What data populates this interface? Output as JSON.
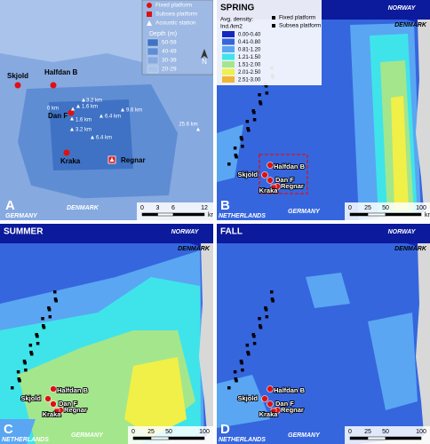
{
  "panel_a": {
    "letter": "A",
    "legend": {
      "items": [
        "Fixed platform",
        "Subsea platform",
        "Acoustic station"
      ],
      "depth_title": "Depth (m)",
      "depth_classes": [
        "50-59",
        "40-49",
        "30-39",
        "20-29"
      ],
      "depth_colors": [
        "#3f72c4",
        "#5f8dd3",
        "#86a9e0",
        "#a9c3ea"
      ]
    },
    "north": "N",
    "platforms": [
      "Skjold",
      "Halfdan B",
      "Dan F",
      "Kraka",
      "Regnar"
    ],
    "distances": [
      "0 km",
      "3.2 km",
      "1.6 km",
      "1.6 km",
      "6.4 km",
      "9.6 km",
      "3.2 km",
      "6.4 km",
      "25.6 km"
    ],
    "countries": [
      "GERMANY",
      "DENMARK"
    ],
    "scale": {
      "ticks": [
        0,
        3,
        6,
        12
      ],
      "unit": "km"
    }
  },
  "density_legend": {
    "title": "Avg. density:",
    "unit": "Ind./km2",
    "classes": [
      "0.00-0.40",
      "0.41-0.80",
      "0.81-1.20",
      "1.21-1.50",
      "1.51-2.00",
      "2.01-2.50",
      "2.51-3.00"
    ],
    "colors": [
      "#1428c0",
      "#3566de",
      "#5aa6f2",
      "#3fe4ea",
      "#a4e68c",
      "#f0f048",
      "#f2b432"
    ],
    "items": [
      "Fixed platform",
      "Subsea platform"
    ]
  },
  "panels": [
    {
      "season": "SPRING",
      "letter": "B",
      "countries": [
        "NORWAY",
        "DENMARK",
        "NETHERLANDS",
        "GERMANY"
      ],
      "platforms": [
        "Halfdan B",
        "Skjold",
        "Dan F",
        "Kraka",
        "Regnar"
      ],
      "scale": {
        "ticks": [
          0,
          25,
          50,
          100
        ],
        "unit": "km"
      }
    },
    {
      "season": "SUMMER",
      "letter": "C",
      "countries": [
        "NORWAY",
        "DENMARK",
        "NETHERLANDS",
        "GERMANY"
      ],
      "platforms": [
        "Halfdan B",
        "Skjold",
        "Dan F",
        "Kraka",
        "Regnar"
      ],
      "scale": {
        "ticks": [
          0,
          25,
          50,
          100
        ]
      }
    },
    {
      "season": "FALL",
      "letter": "D",
      "countries": [
        "NORWAY",
        "DENMARK",
        "NETHERLANDS",
        "GERMANY"
      ],
      "platforms": [
        "Halfdan B",
        "Skjold",
        "Dan F",
        "Kraka",
        "Regnar"
      ],
      "scale": {
        "ticks": [
          0,
          25,
          50,
          100
        ]
      }
    }
  ]
}
